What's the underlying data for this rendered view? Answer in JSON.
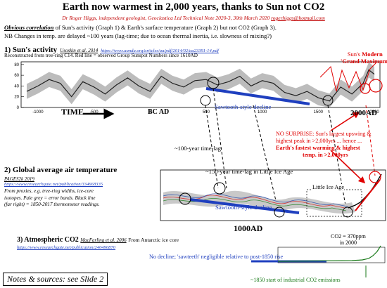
{
  "header": {
    "title": "Earth now warmest in 2,000 years, thanks to Sun not CO2",
    "byline": "Dr Roger Higgs, independent geologist, Geoclastica Ltd Technical Note 2020-3, 30th March 2020",
    "email": "rogerhiggs@hotmail.com",
    "obvious_label": "Obvious correlation",
    "obvious_rest": " of Sun's activity (Graph 1) & Earth's surface temperature (Graph 2) but not CO2 (Graph 3).",
    "nb": "NB Changes in temp. are delayed ~100 years (lag-time; due to ocean thermal inertia, i.e. slowness of mixing?)"
  },
  "graph1": {
    "heading": "1) Sun's activity",
    "cite": "Usoskin et al. 2014",
    "url": "https://www.aanda.org/articles/aa/pdf/2014/02/aa23391-14.pdf",
    "subtitle": "Reconstructed from tree-ring C14. Red line = observed Group Sunspot Numbers since 1610AD",
    "yticks": [
      "80",
      "60",
      "40",
      "20",
      "0"
    ],
    "xticks": [
      "-1000",
      "-500",
      "0",
      "500",
      "1000",
      "1500",
      "2000"
    ],
    "time_label": "TIME",
    "bc_ad": "BC AD",
    "ad2000": "2000AD",
    "modern_max_1": "Sun's",
    "modern_max_2": "Modern",
    "modern_max_3": "'Grand Maximum'",
    "sawtooth": "Sawtooth-style decline"
  },
  "annotations": {
    "lag100": "~100-year time-lag",
    "lag150": "~150-year time-lag in Little Ice Age",
    "no_surprise_1": "NO SURPRISE: Sun's largest upswing &",
    "no_surprise_2": "highest peak in >2,000yrs ... hence ...",
    "fastest_1": "Earth's fastest warming & highest",
    "fastest_2": "temp. in >2,000yrs"
  },
  "graph2": {
    "heading": "2) Global average air temperature",
    "cite": "PAGES2k 2019",
    "url": "https://www.researchgate.net/publication/334668335",
    "note_1": "From proxies, e.g. tree-ring widths, ice-core",
    "note_2": "isotopes. Pale grey = error bands. Black line",
    "note_3": "(far right) = 1850-2017 thermometer readings.",
    "little_ice_age": "Little Ice Age",
    "sawtooth": "Sawtooth-style decline",
    "ad1000": "1000AD"
  },
  "graph3": {
    "heading": "3) Atmospheric CO2",
    "cite": "MacFarling et al. 2006",
    "source": "From Antarctic ice core",
    "url": "https://www.researchgate.net/publication/240490870",
    "co2_1": "CO2 = 370ppm",
    "co2_2": "in 2000",
    "no_decline": "No decline; 'sawteeth' negligible relative to post-1850 rise",
    "start_industrial": "~1850 start of industrial CO2 emissions"
  },
  "footer": {
    "notes": "Notes & sources: see Slide 2"
  },
  "chart_data": {
    "type": "line",
    "title": "1) Sun's activity",
    "xlabel": "",
    "ylabel": "",
    "x": [
      -1100,
      -1000,
      -900,
      -800,
      -700,
      -600,
      -500,
      -400,
      -300,
      -200,
      -100,
      0,
      100,
      200,
      300,
      400,
      500,
      600,
      700,
      800,
      900,
      1000,
      1100,
      1200,
      1300,
      1400,
      1500,
      1600,
      1700,
      1800,
      1900,
      1950,
      2000
    ],
    "series": [
      {
        "name": "",
        "values": [
          30,
          40,
          52,
          45,
          20,
          48,
          38,
          25,
          42,
          55,
          40,
          30,
          58,
          45,
          38,
          50,
          52,
          42,
          48,
          58,
          40,
          50,
          45,
          28,
          22,
          30,
          18,
          12,
          38,
          25,
          45,
          70,
          62
        ]
      }
    ],
    "ylim": [
      0,
      85
    ],
    "xlim": [
      -1150,
      2050
    ]
  },
  "colors": {
    "red": "#e00000",
    "blue": "#1f3fbf",
    "green": "#1a7a1a",
    "band": "#b5b5b5"
  }
}
